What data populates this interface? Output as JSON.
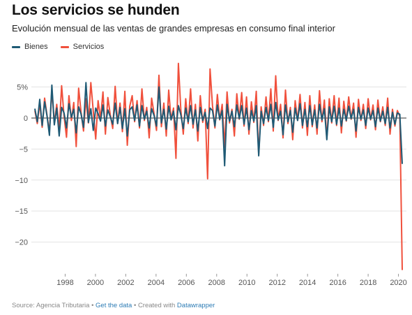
{
  "title": "Los servicios se hunden",
  "subtitle": "Evolución mensual de las ventas de grandes empresas en consumo final interior",
  "legend": [
    {
      "name": "Bienes",
      "color": "#1f5a75"
    },
    {
      "name": "Servicios",
      "color": "#f0503c"
    }
  ],
  "footer": {
    "source": "Source: Agencia Tributaria",
    "sep1": " • ",
    "get_data": "Get the data",
    "sep2": " • Created with ",
    "datawrapper": "Datawrapper"
  },
  "chart_data": {
    "type": "line",
    "x_start": "1996-01",
    "x_end": "2020-04",
    "ylim": [
      -25,
      9
    ],
    "y_ticks": [
      5,
      0,
      -5,
      -10,
      -15,
      -20
    ],
    "y_tick_labels": [
      "5%",
      "0",
      "−5",
      "−10",
      "−15",
      "−20"
    ],
    "x_ticks": [
      1998,
      2000,
      2002,
      2004,
      2006,
      2008,
      2010,
      2012,
      2014,
      2016,
      2018,
      2020
    ],
    "grid": true,
    "legend_position": "top-left",
    "series": [
      {
        "name": "Servicios",
        "color": "#f0503c",
        "interval": "monthly; points from 1996-01 spaced two months apart, last value 2020-04",
        "values": [
          1.2,
          -0.9,
          2.4,
          -1.5,
          3.2,
          0.4,
          -2.3,
          4.6,
          -0.8,
          2.2,
          -1.9,
          5.2,
          0.3,
          -3.1,
          3.6,
          -0.4,
          2.5,
          -4.6,
          4.8,
          0.9,
          -2.1,
          3.1,
          -0.8,
          5.7,
          1.1,
          -3.4,
          2.8,
          -0.1,
          4.2,
          -2.6,
          3.3,
          0.5,
          -1.7,
          5.1,
          -0.9,
          2.4,
          -2.2,
          4.3,
          -4.4,
          1.9,
          3.6,
          -0.6,
          2.8,
          -1.6,
          4.7,
          -0.4,
          1.7,
          -3.2,
          3.2,
          0.7,
          -2.0,
          6.9,
          -1.4,
          2.4,
          -2.9,
          4.5,
          -0.3,
          1.6,
          -6.5,
          8.8,
          1.3,
          -2.6,
          3.1,
          -0.9,
          4.7,
          -1.6,
          2.2,
          -3.7,
          3.6,
          -0.7,
          1.4,
          -9.8,
          7.9,
          2.0,
          -1.6,
          3.8,
          -0.3,
          2.2,
          -4.7,
          4.2,
          -0.8,
          1.4,
          -2.9,
          3.9,
          -0.2,
          4.1,
          -1.3,
          3.4,
          -2.6,
          2.6,
          -0.7,
          4.3,
          -5.9,
          1.8,
          -1.2,
          3.4,
          -0.6,
          4.7,
          -2.1,
          6.8,
          -0.4,
          2.2,
          -3.2,
          4.5,
          -0.9,
          1.7,
          -3.5,
          2.8,
          -0.4,
          3.8,
          -1.6,
          2.5,
          -2.8,
          3.6,
          -1.4,
          2.1,
          -2.6,
          4.4,
          -0.6,
          2.9,
          -3.3,
          3.1,
          -0.8,
          3.6,
          -1.2,
          3.2,
          -2.4,
          2.7,
          -0.5,
          3.4,
          -0.2,
          2.4,
          -3.1,
          3.0,
          -0.4,
          2.2,
          -1.7,
          3.1,
          -0.3,
          2.1,
          -1.9,
          2.9,
          -0.6,
          1.8,
          -1.2,
          3.2,
          -2.6,
          1.4,
          -1.3,
          1.2,
          0.3,
          -24.5
        ]
      },
      {
        "name": "Bienes",
        "color": "#1f5a75",
        "interval": "monthly; points from 1996-01 spaced two months apart, last value 2020-04",
        "values": [
          1.5,
          -0.6,
          3.0,
          -1.2,
          2.6,
          0.3,
          -2.8,
          5.3,
          -1.1,
          1.6,
          -2.9,
          1.7,
          0.8,
          -1.6,
          2.3,
          0.1,
          1.4,
          -2.4,
          1.8,
          0.6,
          -1.5,
          5.7,
          -0.7,
          1.5,
          -2.0,
          1.6,
          0.7,
          -0.5,
          2.1,
          -1.3,
          1.3,
          0.2,
          -1.0,
          2.4,
          -0.9,
          1.7,
          -1.7,
          1.5,
          -2.9,
          1.3,
          1.8,
          -0.4,
          2.1,
          -1.3,
          2.0,
          -0.2,
          1.1,
          -1.6,
          1.5,
          0.4,
          -1.3,
          5.0,
          -0.8,
          1.4,
          -1.8,
          1.9,
          -0.3,
          1.1,
          -1.9,
          2.0,
          0.5,
          -1.7,
          1.6,
          -0.6,
          2.0,
          -1.0,
          1.3,
          -2.1,
          1.7,
          -0.4,
          0.9,
          -1.7,
          1.6,
          1.2,
          -1.3,
          2.1,
          -0.2,
          1.2,
          -7.7,
          2.2,
          -0.5,
          1.1,
          -1.4,
          2.1,
          -0.1,
          2.0,
          -1.0,
          1.6,
          -1.9,
          1.2,
          -0.5,
          2.0,
          -6.1,
          1.1,
          -0.9,
          1.7,
          -0.4,
          2.2,
          -1.5,
          2.5,
          -0.3,
          1.1,
          -2.7,
          2.1,
          -0.6,
          1.2,
          -2.3,
          1.6,
          -0.4,
          2.3,
          -1.2,
          1.4,
          -1.4,
          2.0,
          -1.1,
          1.3,
          -1.6,
          2.2,
          -0.3,
          1.5,
          -3.5,
          1.8,
          -0.6,
          1.9,
          -1.0,
          1.6,
          -1.3,
          1.4,
          -0.4,
          1.9,
          -0.1,
          1.4,
          -2.1,
          1.7,
          -0.2,
          1.3,
          -1.2,
          1.6,
          -0.2,
          1.2,
          -1.4,
          1.6,
          -0.5,
          1.1,
          -0.9,
          1.7,
          -1.6,
          0.9,
          -1.0,
          0.8,
          0.6,
          -7.4
        ]
      }
    ]
  }
}
